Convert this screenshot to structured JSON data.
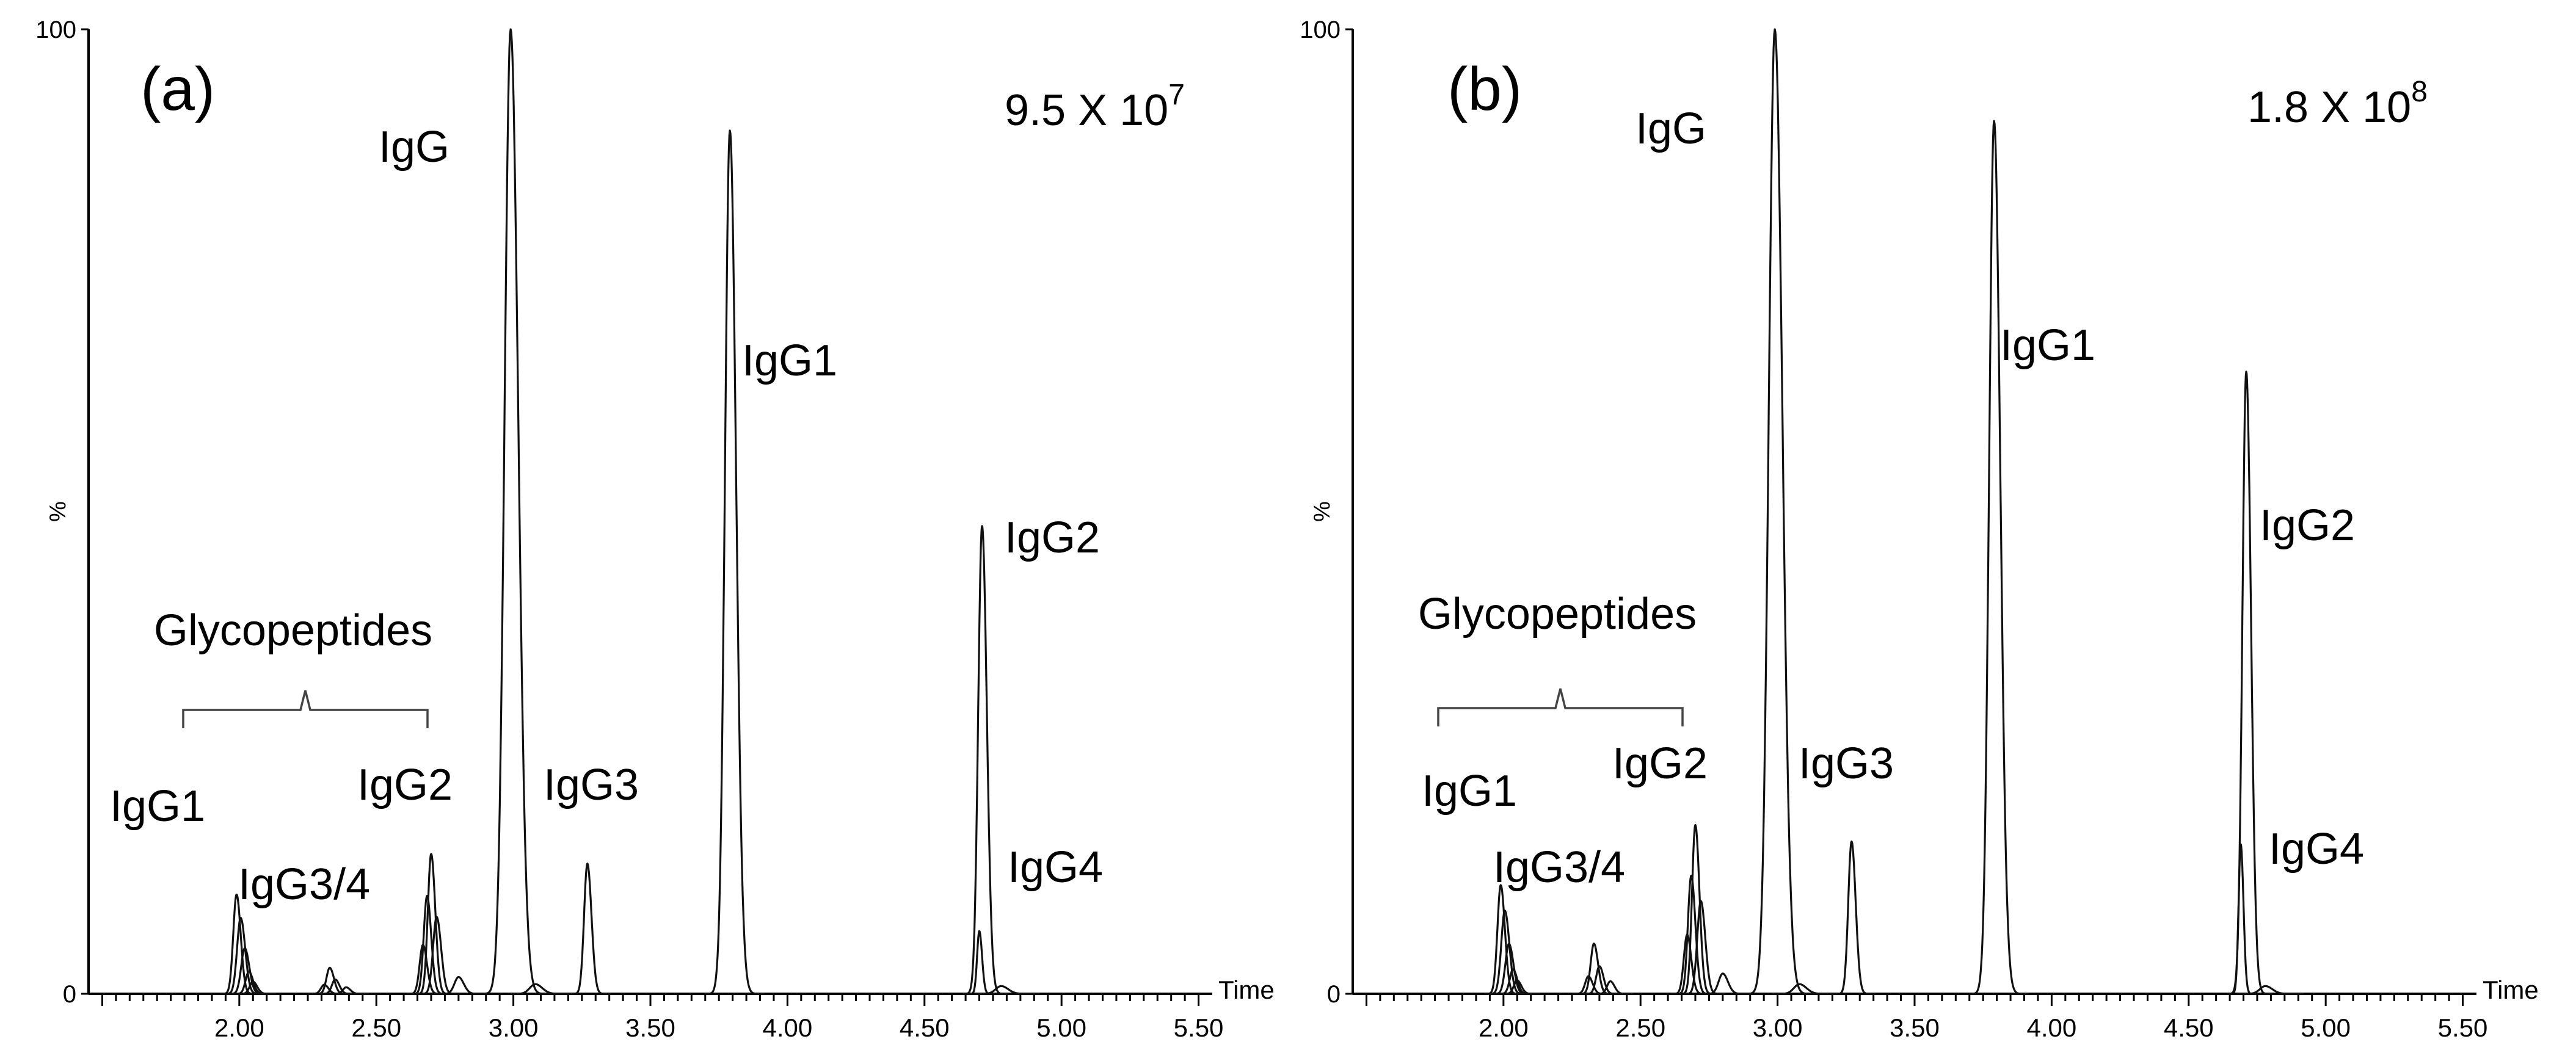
{
  "chart_data": [
    {
      "type": "line",
      "panel_label": "(a)",
      "scale_text": "9.5 X 10",
      "scale_exponent": "7",
      "xlabel": "Time",
      "ylabel": "%",
      "xlim": [
        1.45,
        5.55
      ],
      "ylim": [
        0,
        100
      ],
      "x_ticks": [
        "2.00",
        "2.50",
        "3.00",
        "3.50",
        "4.00",
        "4.50",
        "5.00",
        "5.50"
      ],
      "y_ticks": [
        "100",
        "0"
      ],
      "bracket_label": "Glycopeptides",
      "peaks": [
        {
          "x": 2.0,
          "y": 10.5,
          "label": "IgG1"
        },
        {
          "x": 2.33,
          "y": 2.7,
          "label": "IgG3/4"
        },
        {
          "x": 2.7,
          "y": 14.5,
          "label": "IgG2"
        },
        {
          "x": 2.99,
          "y": 100,
          "label": "IgG"
        },
        {
          "x": 3.27,
          "y": 13.5,
          "label": "IgG3"
        },
        {
          "x": 3.79,
          "y": 89.5,
          "label": "IgG1"
        },
        {
          "x": 4.71,
          "y": 48.5,
          "label": "IgG2"
        },
        {
          "x": 4.7,
          "y": 6.5,
          "label": "IgG4"
        }
      ]
    },
    {
      "type": "line",
      "panel_label": "(b)",
      "scale_text": "1.8 X 10",
      "scale_exponent": "8",
      "xlabel": "Time",
      "ylabel": "%",
      "xlim": [
        1.45,
        5.55
      ],
      "ylim": [
        0,
        100
      ],
      "x_ticks": [
        "2.00",
        "2.50",
        "3.00",
        "3.50",
        "4.00",
        "4.50",
        "5.00",
        "5.50"
      ],
      "y_ticks": [
        "100",
        "0"
      ],
      "bracket_label": "Glycopeptides",
      "peaks": [
        {
          "x": 2.0,
          "y": 11.5,
          "label": "IgG1"
        },
        {
          "x": 2.33,
          "y": 5.2,
          "label": "IgG3/4"
        },
        {
          "x": 2.7,
          "y": 17.5,
          "label": "IgG2"
        },
        {
          "x": 2.99,
          "y": 100,
          "label": "IgG"
        },
        {
          "x": 3.27,
          "y": 15.8,
          "label": "IgG3"
        },
        {
          "x": 3.79,
          "y": 90.5,
          "label": "IgG1"
        },
        {
          "x": 4.71,
          "y": 64.5,
          "label": "IgG2"
        },
        {
          "x": 4.69,
          "y": 15.5,
          "label": "IgG4"
        }
      ]
    }
  ]
}
